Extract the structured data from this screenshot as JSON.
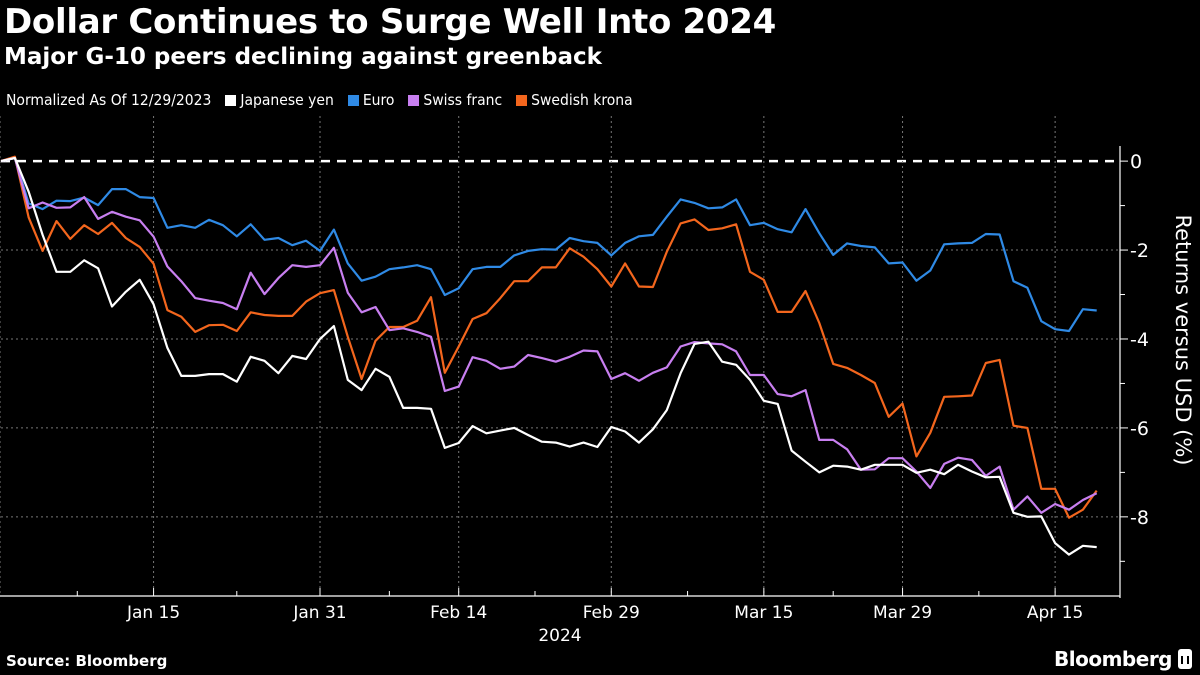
{
  "header": {
    "title": "Dollar Continues to Surge Well Into 2024",
    "subtitle": "Major G-10 peers declining against greenback"
  },
  "legend": {
    "note": "Normalized As Of 12/29/2023"
  },
  "footer": {
    "source": "Source: Bloomberg",
    "logo": "Bloomberg"
  },
  "chart_data": {
    "type": "line",
    "title": "Dollar Continues to Surge Well Into 2024",
    "subtitle": "Major G-10 peers declining against greenback",
    "xlabel": "2024",
    "ylabel": "Returns versus USD (%)",
    "y_axis_side": "right",
    "ylim": [
      -9.78,
      0.34
    ],
    "yticks": [
      0,
      -2,
      -4,
      -6,
      -8
    ],
    "xtick_labels": [
      {
        "date": "2024-01-15",
        "label": "Jan 15"
      },
      {
        "date": "2024-01-31",
        "label": "Jan 31"
      },
      {
        "date": "2024-02-14",
        "label": "Feb 14"
      },
      {
        "date": "2024-02-29",
        "label": "Feb 29"
      },
      {
        "date": "2024-03-15",
        "label": "Mar 15"
      },
      {
        "date": "2024-03-29",
        "label": "Mar 29"
      },
      {
        "date": "2024-04-15",
        "label": "Apr 15"
      }
    ],
    "grid": true,
    "reference_line": {
      "y": 0,
      "style": "dashed",
      "color": "#ffffff"
    },
    "legend_position": "top-left",
    "x": [
      "2023-12-29",
      "2024-01-01",
      "2024-01-02",
      "2024-01-03",
      "2024-01-04",
      "2024-01-05",
      "2024-01-08",
      "2024-01-09",
      "2024-01-10",
      "2024-01-11",
      "2024-01-12",
      "2024-01-15",
      "2024-01-16",
      "2024-01-17",
      "2024-01-18",
      "2024-01-19",
      "2024-01-22",
      "2024-01-23",
      "2024-01-24",
      "2024-01-25",
      "2024-01-26",
      "2024-01-29",
      "2024-01-30",
      "2024-01-31",
      "2024-02-01",
      "2024-02-02",
      "2024-02-05",
      "2024-02-06",
      "2024-02-07",
      "2024-02-08",
      "2024-02-09",
      "2024-02-12",
      "2024-02-13",
      "2024-02-14",
      "2024-02-15",
      "2024-02-16",
      "2024-02-19",
      "2024-02-20",
      "2024-02-21",
      "2024-02-22",
      "2024-02-23",
      "2024-02-26",
      "2024-02-27",
      "2024-02-28",
      "2024-02-29",
      "2024-03-01",
      "2024-03-04",
      "2024-03-05",
      "2024-03-06",
      "2024-03-07",
      "2024-03-08",
      "2024-03-11",
      "2024-03-12",
      "2024-03-13",
      "2024-03-14",
      "2024-03-15",
      "2024-03-18",
      "2024-03-19",
      "2024-03-20",
      "2024-03-21",
      "2024-03-22",
      "2024-03-25",
      "2024-03-26",
      "2024-03-27",
      "2024-03-28",
      "2024-03-29",
      "2024-04-01",
      "2024-04-02",
      "2024-04-03",
      "2024-04-04",
      "2024-04-05",
      "2024-04-08",
      "2024-04-09",
      "2024-04-10",
      "2024-04-11",
      "2024-04-12",
      "2024-04-15",
      "2024-04-16",
      "2024-04-17",
      "2024-04-18"
    ],
    "series": [
      {
        "name": "Japanese yen",
        "color": "#ffffff",
        "values": [
          0,
          0.07,
          -0.69,
          -1.66,
          -2.49,
          -2.49,
          -2.23,
          -2.41,
          -3.27,
          -2.94,
          -2.67,
          -3.22,
          -4.2,
          -4.83,
          -4.83,
          -4.79,
          -4.79,
          -4.96,
          -4.4,
          -4.49,
          -4.77,
          -4.38,
          -4.45,
          -4.0,
          -3.71,
          -4.92,
          -5.15,
          -4.67,
          -4.85,
          -5.55,
          -5.55,
          -5.57,
          -6.45,
          -6.34,
          -5.96,
          -6.12,
          -6.06,
          -6.0,
          -6.16,
          -6.31,
          -6.33,
          -6.42,
          -6.33,
          -6.43,
          -5.98,
          -6.08,
          -6.33,
          -6.03,
          -5.6,
          -4.77,
          -4.11,
          -4.06,
          -4.51,
          -4.58,
          -4.92,
          -5.39,
          -5.46,
          -6.51,
          -6.76,
          -7.0,
          -6.85,
          -6.87,
          -6.94,
          -6.83,
          -6.83,
          -6.83,
          -7.01,
          -6.94,
          -7.04,
          -6.83,
          -6.98,
          -7.11,
          -7.1,
          -7.91,
          -8.0,
          -7.99,
          -8.59,
          -8.85,
          -8.65,
          -8.68
        ]
      },
      {
        "name": "Euro",
        "color": "#2f8ae5",
        "values": [
          0,
          0.07,
          -0.95,
          -1.08,
          -0.89,
          -0.9,
          -0.82,
          -0.99,
          -0.63,
          -0.63,
          -0.81,
          -0.83,
          -1.5,
          -1.44,
          -1.5,
          -1.32,
          -1.44,
          -1.69,
          -1.42,
          -1.77,
          -1.73,
          -1.89,
          -1.79,
          -2.02,
          -1.54,
          -2.3,
          -2.69,
          -2.6,
          -2.43,
          -2.39,
          -2.34,
          -2.43,
          -3.01,
          -2.86,
          -2.43,
          -2.38,
          -2.38,
          -2.12,
          -2.02,
          -1.98,
          -1.99,
          -1.73,
          -1.8,
          -1.84,
          -2.12,
          -1.84,
          -1.69,
          -1.66,
          -1.25,
          -0.86,
          -0.94,
          -1.06,
          -1.04,
          -0.86,
          -1.44,
          -1.39,
          -1.53,
          -1.6,
          -1.08,
          -1.62,
          -2.11,
          -1.85,
          -1.91,
          -1.94,
          -2.3,
          -2.28,
          -2.69,
          -2.46,
          -1.87,
          -1.85,
          -1.84,
          -1.64,
          -1.65,
          -2.7,
          -2.85,
          -3.6,
          -3.78,
          -3.82,
          -3.33,
          -3.36
        ]
      },
      {
        "name": "Swiss franc",
        "color": "#c87ff0",
        "values": [
          0,
          0.07,
          -1.06,
          -0.93,
          -1.05,
          -1.04,
          -0.81,
          -1.3,
          -1.14,
          -1.25,
          -1.33,
          -1.7,
          -2.37,
          -2.7,
          -3.08,
          -3.14,
          -3.19,
          -3.33,
          -2.51,
          -2.99,
          -2.63,
          -2.34,
          -2.38,
          -2.34,
          -1.95,
          -2.96,
          -3.4,
          -3.28,
          -3.8,
          -3.76,
          -3.84,
          -3.95,
          -5.17,
          -5.07,
          -4.41,
          -4.49,
          -4.67,
          -4.62,
          -4.36,
          -4.43,
          -4.51,
          -4.4,
          -4.26,
          -4.28,
          -4.9,
          -4.77,
          -4.94,
          -4.76,
          -4.64,
          -4.17,
          -4.07,
          -4.1,
          -4.12,
          -4.28,
          -4.81,
          -4.81,
          -5.24,
          -5.29,
          -5.15,
          -6.27,
          -6.27,
          -6.48,
          -6.94,
          -6.93,
          -6.68,
          -6.68,
          -6.98,
          -7.35,
          -6.81,
          -6.67,
          -6.72,
          -7.08,
          -6.87,
          -7.84,
          -7.54,
          -7.91,
          -7.71,
          -7.84,
          -7.62,
          -7.47
        ]
      },
      {
        "name": "Swedish krona",
        "color": "#f3661d",
        "values": [
          0,
          0.1,
          -1.27,
          -2.02,
          -1.35,
          -1.75,
          -1.44,
          -1.64,
          -1.39,
          -1.73,
          -1.93,
          -2.31,
          -3.35,
          -3.5,
          -3.84,
          -3.69,
          -3.68,
          -3.82,
          -3.4,
          -3.46,
          -3.48,
          -3.48,
          -3.16,
          -2.97,
          -2.9,
          -3.95,
          -4.9,
          -4.04,
          -3.73,
          -3.73,
          -3.59,
          -3.06,
          -4.76,
          -4.17,
          -3.55,
          -3.42,
          -3.08,
          -2.7,
          -2.7,
          -2.39,
          -2.39,
          -1.96,
          -2.15,
          -2.43,
          -2.82,
          -2.3,
          -2.82,
          -2.83,
          -2.04,
          -1.4,
          -1.31,
          -1.55,
          -1.51,
          -1.42,
          -2.49,
          -2.67,
          -3.39,
          -3.39,
          -2.92,
          -3.64,
          -4.56,
          -4.65,
          -4.81,
          -4.99,
          -5.75,
          -5.45,
          -6.64,
          -6.11,
          -5.3,
          -5.29,
          -5.27,
          -4.54,
          -4.47,
          -5.95,
          -6.0,
          -7.37,
          -7.37,
          -8.02,
          -7.84,
          -7.41
        ]
      }
    ]
  }
}
